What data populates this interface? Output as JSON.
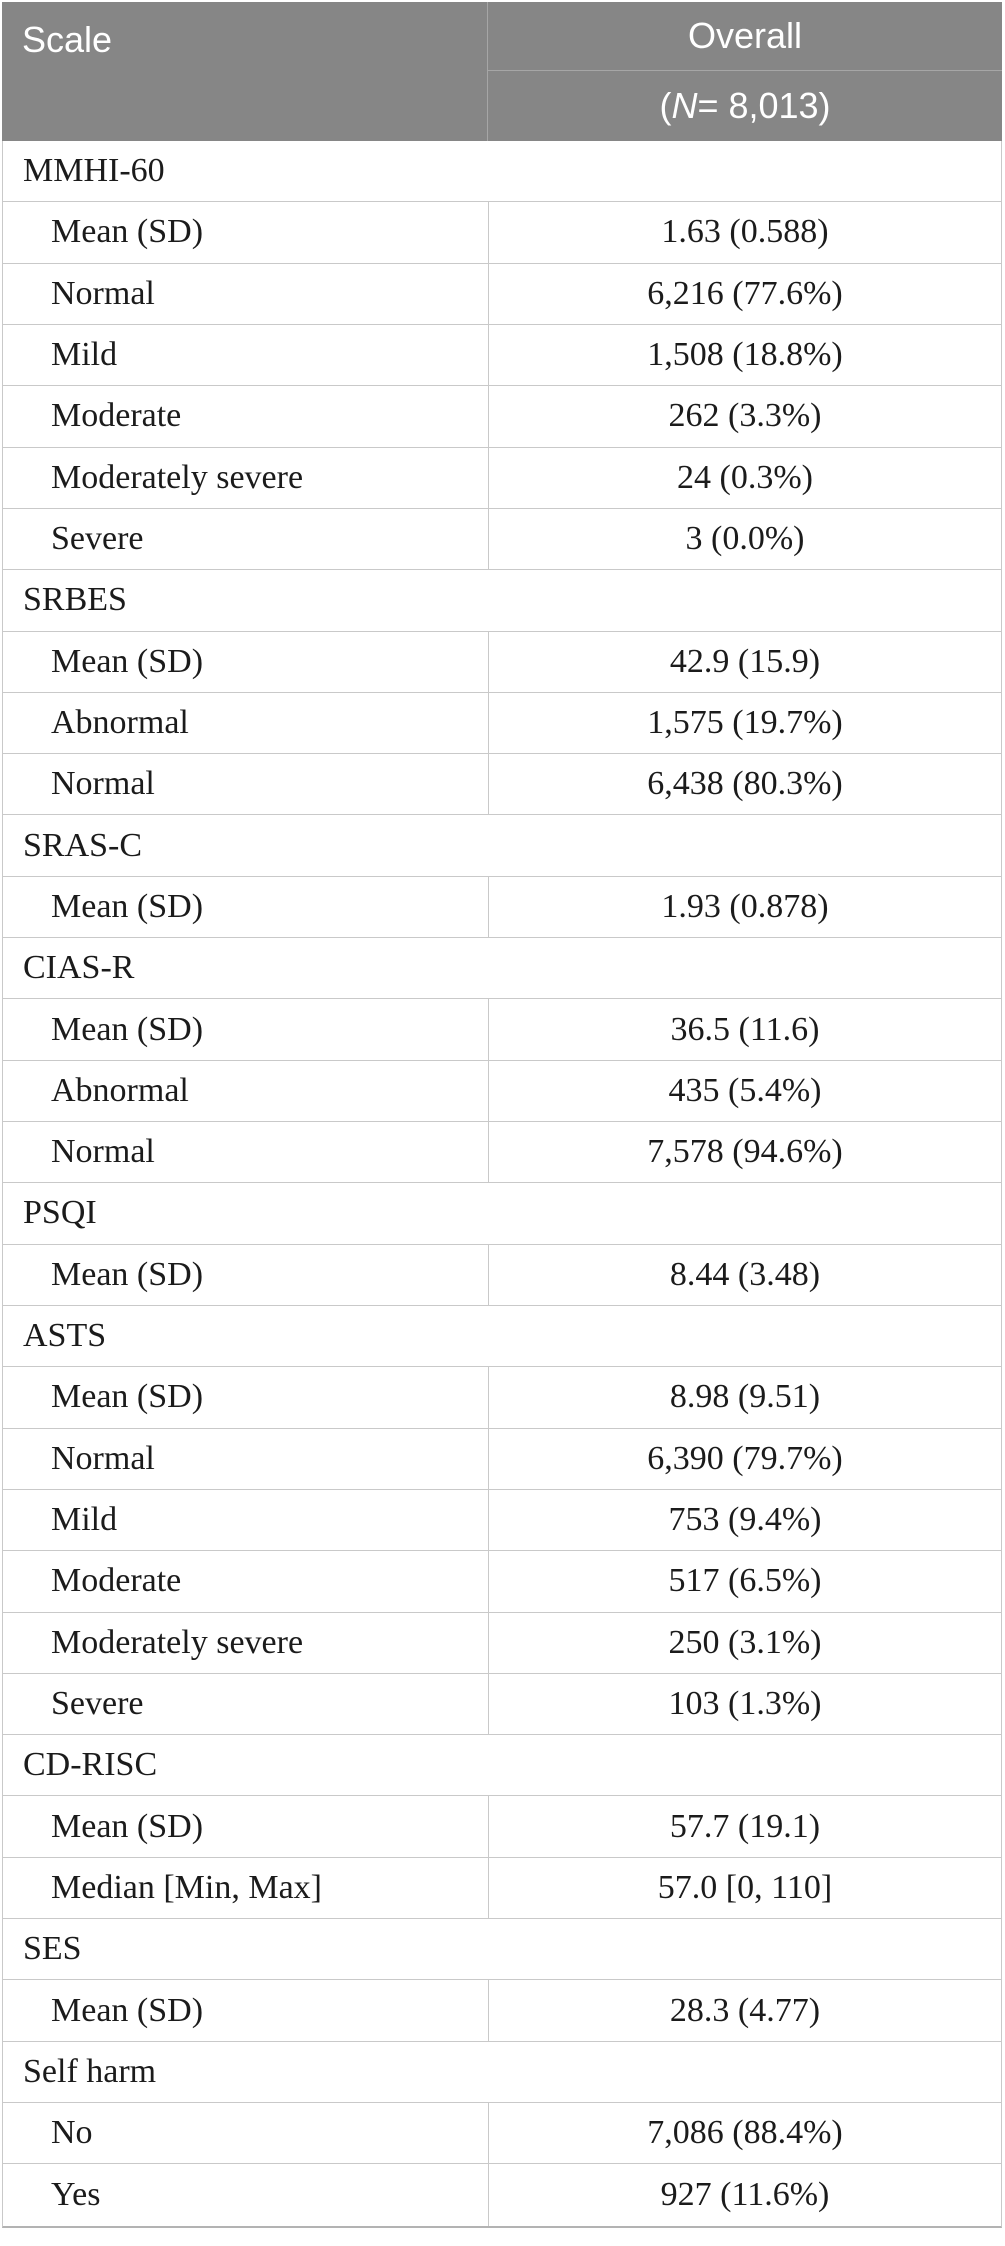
{
  "colors": {
    "header_bg": "#868686",
    "header_text": "#ffffff",
    "header_divider": "#a6a6a6",
    "row_border": "#c9c9c9",
    "table_bottom_border": "#b3b3b3",
    "body_text": "#1b1b1b",
    "page_bg": "#ffffff"
  },
  "table": {
    "header": {
      "col1": "Scale",
      "col2_line1": "Overall",
      "col2_line2_pre": "(",
      "col2_line2_n": "N",
      "col2_line2_post": " = 8,013)"
    },
    "rows": [
      {
        "type": "section",
        "label": "MMHI-60"
      },
      {
        "type": "data",
        "label": "Mean (SD)",
        "value": "1.63 (0.588)"
      },
      {
        "type": "data",
        "label": "Normal",
        "value": "6,216 (77.6%)"
      },
      {
        "type": "data",
        "label": "Mild",
        "value": "1,508 (18.8%)"
      },
      {
        "type": "data",
        "label": "Moderate",
        "value": "262 (3.3%)"
      },
      {
        "type": "data",
        "label": "Moderately severe",
        "value": "24 (0.3%)"
      },
      {
        "type": "data",
        "label": "Severe",
        "value": "3 (0.0%)"
      },
      {
        "type": "section",
        "label": "SRBES"
      },
      {
        "type": "data",
        "label": "Mean (SD)",
        "value": "42.9 (15.9)"
      },
      {
        "type": "data",
        "label": "Abnormal",
        "value": "1,575 (19.7%)"
      },
      {
        "type": "data",
        "label": "Normal",
        "value": "6,438 (80.3%)"
      },
      {
        "type": "section",
        "label": "SRAS-C"
      },
      {
        "type": "data",
        "label": "Mean (SD)",
        "value": "1.93 (0.878)"
      },
      {
        "type": "section",
        "label": "CIAS-R"
      },
      {
        "type": "data",
        "label": "Mean (SD)",
        "value": "36.5 (11.6)"
      },
      {
        "type": "data",
        "label": "Abnormal",
        "value": "435 (5.4%)"
      },
      {
        "type": "data",
        "label": "Normal",
        "value": "7,578 (94.6%)"
      },
      {
        "type": "section",
        "label": "PSQI"
      },
      {
        "type": "data",
        "label": "Mean (SD)",
        "value": "8.44 (3.48)"
      },
      {
        "type": "section",
        "label": "ASTS"
      },
      {
        "type": "data",
        "label": "Mean (SD)",
        "value": "8.98 (9.51)"
      },
      {
        "type": "data",
        "label": "Normal",
        "value": "6,390 (79.7%)"
      },
      {
        "type": "data",
        "label": "Mild",
        "value": "753 (9.4%)"
      },
      {
        "type": "data",
        "label": "Moderate",
        "value": "517 (6.5%)"
      },
      {
        "type": "data",
        "label": "Moderately severe",
        "value": "250 (3.1%)"
      },
      {
        "type": "data",
        "label": "Severe",
        "value": "103 (1.3%)"
      },
      {
        "type": "section",
        "label": "CD-RISC"
      },
      {
        "type": "data",
        "label": "Mean (SD)",
        "value": "57.7 (19.1)"
      },
      {
        "type": "data",
        "label": "Median [Min, Max]",
        "value": "57.0 [0, 110]"
      },
      {
        "type": "section",
        "label": "SES"
      },
      {
        "type": "data",
        "label": "Mean (SD)",
        "value": "28.3 (4.77)"
      },
      {
        "type": "section",
        "label": "Self harm"
      },
      {
        "type": "data",
        "label": "No",
        "value": "7,086 (88.4%)"
      },
      {
        "type": "data",
        "label": "Yes",
        "value": "927 (11.6%)"
      }
    ]
  }
}
